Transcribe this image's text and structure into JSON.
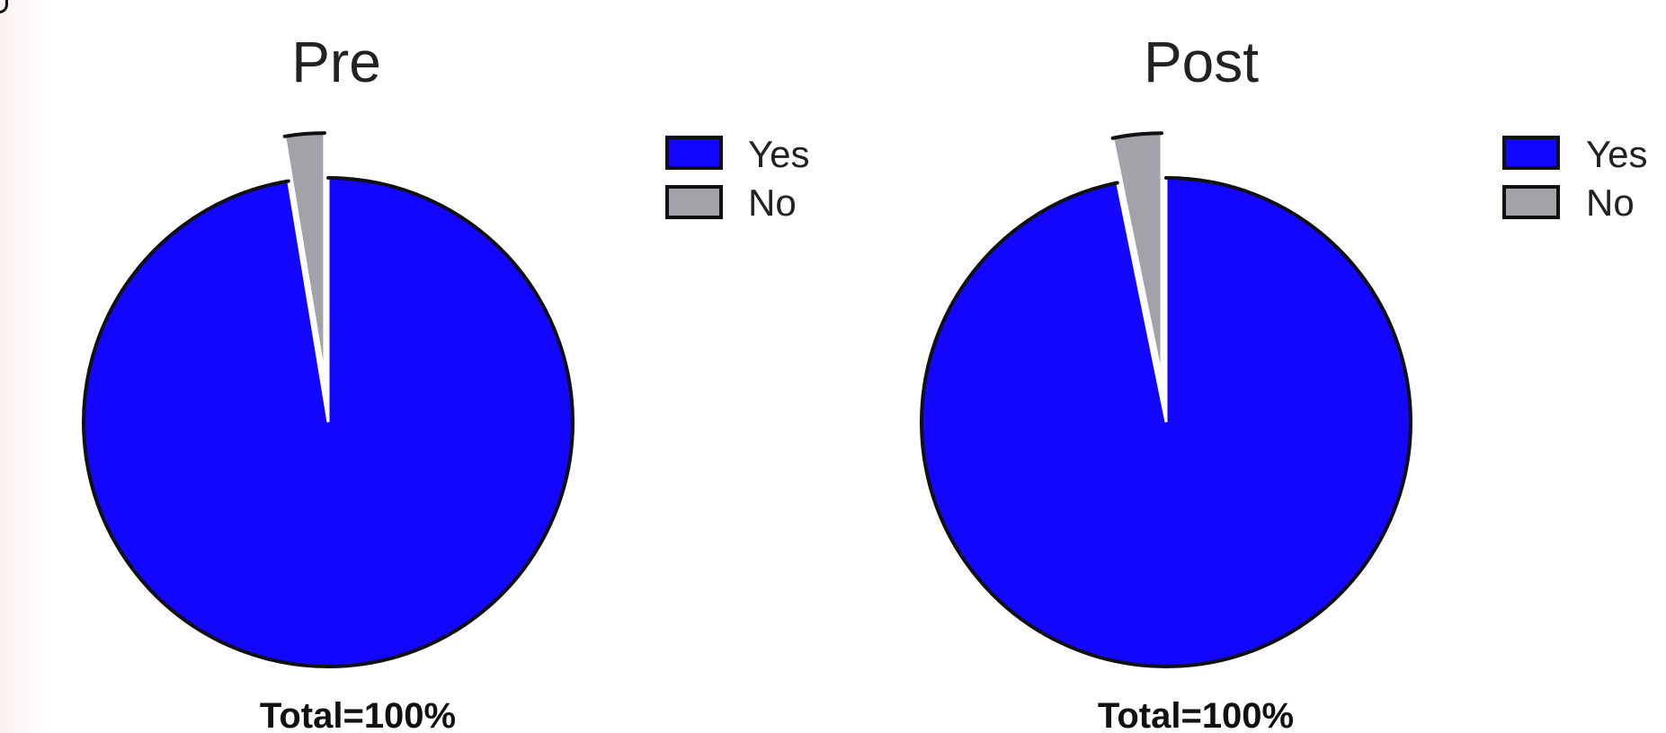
{
  "chart_data": [
    {
      "type": "pie",
      "title": "Pre",
      "footer": "Total=100%",
      "slices": [
        {
          "label": "Yes",
          "value": 97.4,
          "color": "#1206ff",
          "exploded": false
        },
        {
          "label": "No",
          "value": 2.6,
          "color": "#a3a2a8",
          "exploded": true
        }
      ],
      "legend": {
        "position": "right",
        "entries": [
          "Yes",
          "No"
        ]
      }
    },
    {
      "type": "pie",
      "title": "Post",
      "footer": "Total=100%",
      "slices": [
        {
          "label": "Yes",
          "value": 96.8,
          "color": "#1206ff",
          "exploded": false
        },
        {
          "label": "No",
          "value": 3.2,
          "color": "#a3a2a8",
          "exploded": true
        }
      ],
      "legend": {
        "position": "right",
        "entries": [
          "Yes",
          "No"
        ]
      }
    }
  ]
}
